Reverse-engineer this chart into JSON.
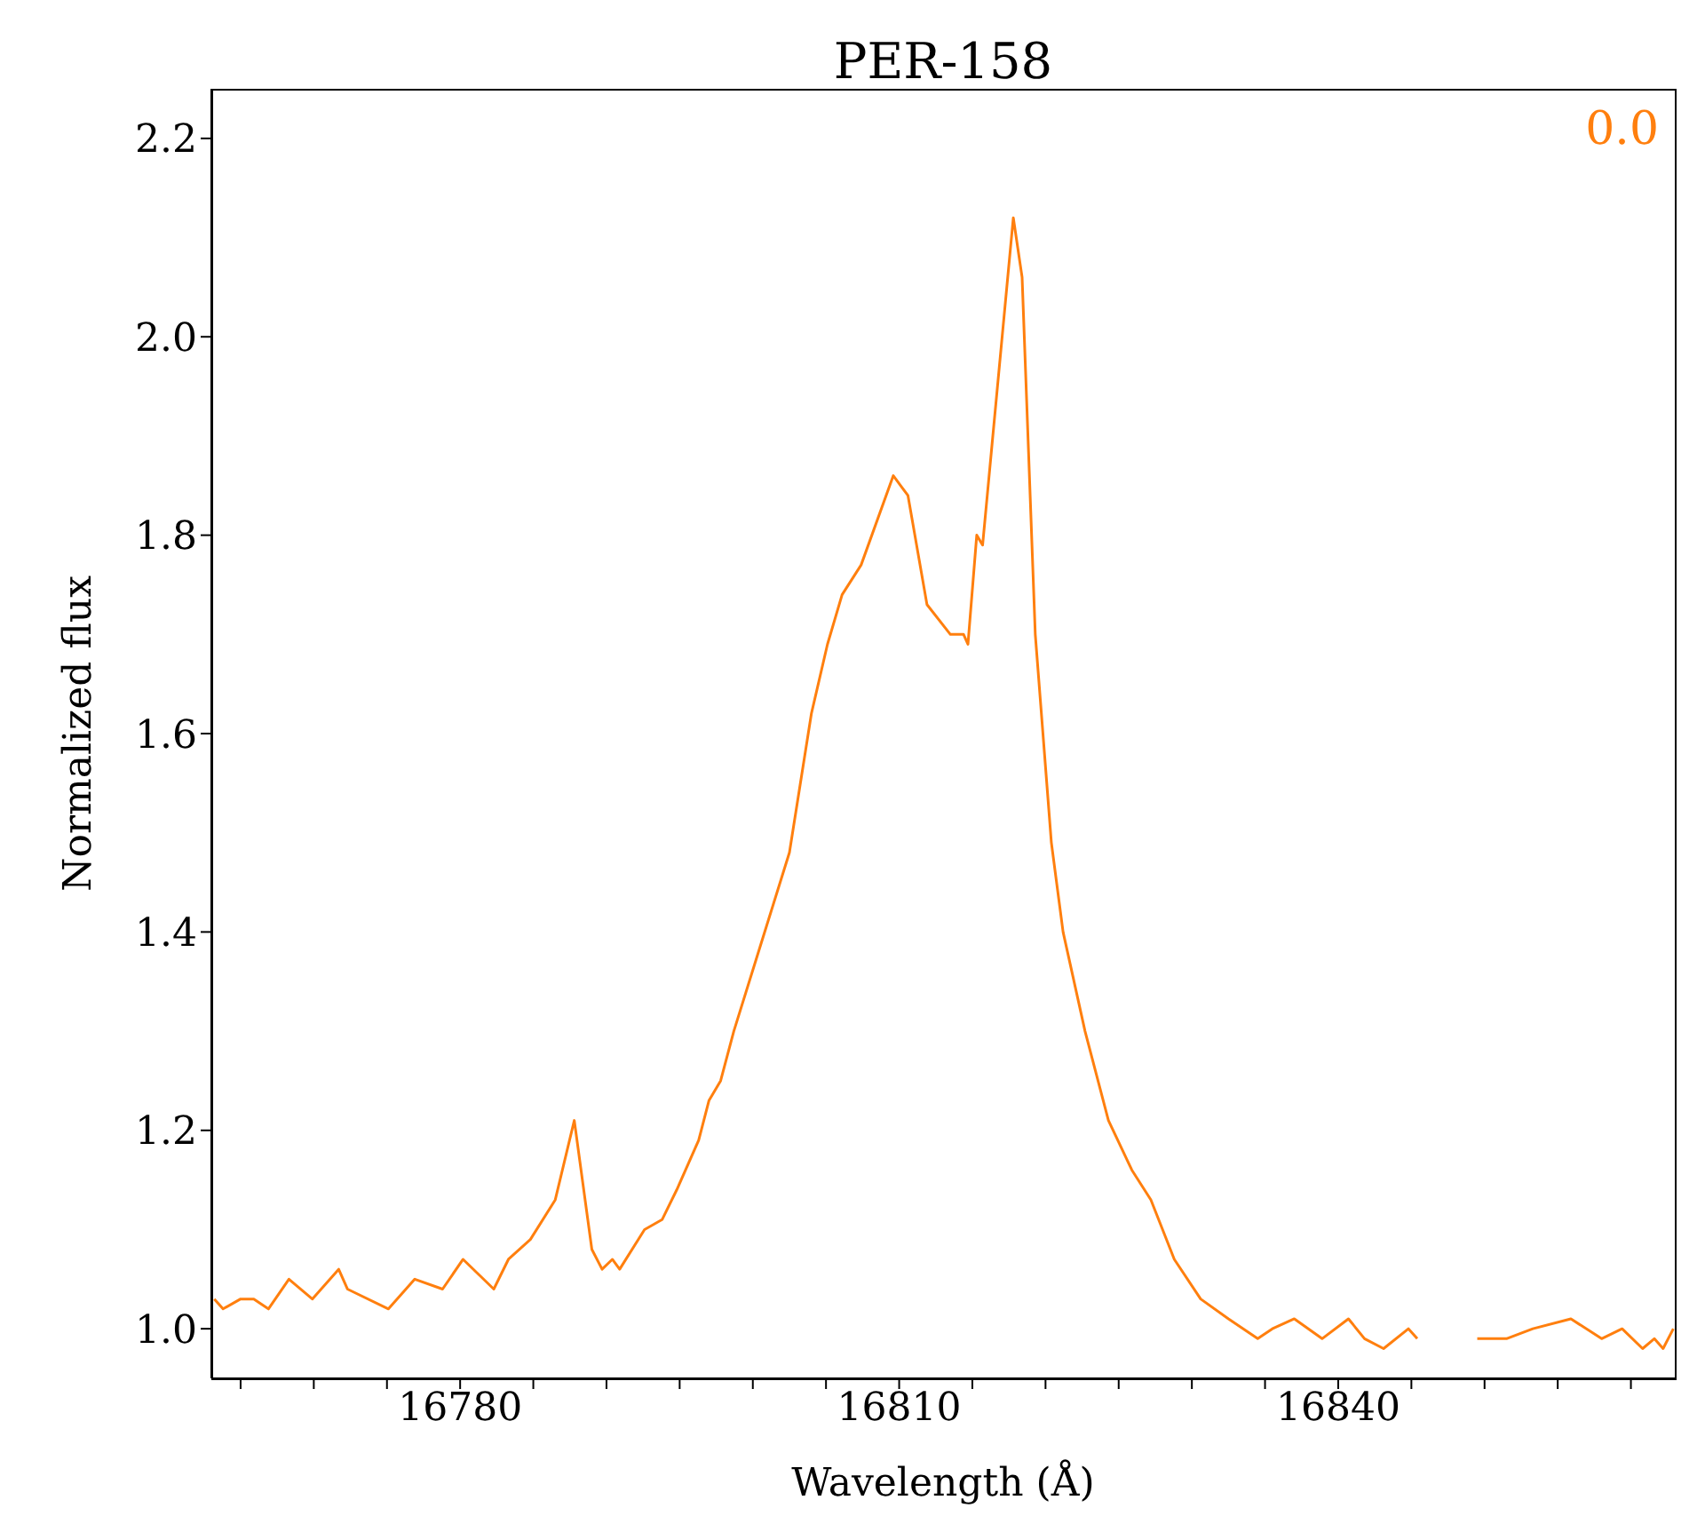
{
  "chart_data": {
    "type": "line",
    "title": "PER-158",
    "xlabel": "Wavelength (Å)",
    "ylabel": "Normalized flux",
    "annotations": [
      "0.0"
    ],
    "xlim": [
      16763,
      16863
    ],
    "ylim": [
      0.95,
      2.25
    ],
    "xticks": [
      {
        "value": 16765,
        "label": null
      },
      {
        "value": 16770,
        "label": null
      },
      {
        "value": 16775,
        "label": null
      },
      16780,
      {
        "value": 16785,
        "label": null
      },
      {
        "value": 16790,
        "label": null
      },
      {
        "value": 16795,
        "label": null
      },
      {
        "value": 16800,
        "label": null
      },
      {
        "value": 16805,
        "label": null
      },
      16810,
      {
        "value": 16815,
        "label": null
      },
      {
        "value": 16820,
        "label": null
      },
      {
        "value": 16825,
        "label": null
      },
      {
        "value": 16830,
        "label": null
      },
      {
        "value": 16835,
        "label": null
      },
      16840,
      {
        "value": 16845,
        "label": null
      },
      {
        "value": 16850,
        "label": null
      },
      {
        "value": 16855,
        "label": null
      },
      {
        "value": 16860,
        "label": null
      }
    ],
    "yticks": [
      {
        "value": 1.0,
        "label": "1.0"
      },
      1.2,
      1.4,
      1.6,
      1.8,
      {
        "value": 2.0,
        "label": "2.0"
      },
      2.2
    ],
    "grid": false,
    "legend": false,
    "marker": "none",
    "line_style": "solid",
    "x": [
      16763.2,
      16763.8,
      16765.0,
      16765.9,
      16766.9,
      16768.3,
      16769.9,
      16771.7,
      16772.3,
      16775.1,
      16776.9,
      16778.8,
      16780.2,
      16782.3,
      16783.3,
      16784.8,
      16786.5,
      16787.8,
      16789.0,
      16789.7,
      16790.4,
      16790.9,
      16792.6,
      16793.8,
      16794.8,
      16796.3,
      16797.0,
      16797.8,
      16798.7,
      16800.6,
      16802.5,
      16804.0,
      16805.1,
      16806.1,
      16807.4,
      16809.6,
      16810.6,
      16811.9,
      16813.5,
      16814.4,
      16814.7,
      16815.3,
      16815.7,
      16816.4,
      16817.8,
      16818.4,
      16819.3,
      16820.4,
      16821.2,
      16822.7,
      16824.3,
      16825.9,
      16827.2,
      16828.8,
      16830.6,
      16832.5,
      16834.5,
      16835.5,
      16837.0,
      16838.9,
      16840.7,
      16841.8,
      16843.1,
      16844.8,
      16845.4,
      16847.5,
      16849.5,
      16851.5,
      16853.3,
      16855.9,
      16858.0,
      16859.4,
      16860.8,
      16861.6,
      16862.2,
      16862.9
    ],
    "series": [
      {
        "color": "#ff7f0e",
        "values": [
          1.03,
          1.02,
          1.03,
          1.03,
          1.02,
          1.05,
          1.03,
          1.06,
          1.04,
          1.02,
          1.05,
          1.04,
          1.07,
          1.04,
          1.07,
          1.09,
          1.13,
          1.21,
          1.08,
          1.06,
          1.07,
          1.06,
          1.1,
          1.11,
          1.14,
          1.19,
          1.23,
          1.25,
          1.3,
          1.39,
          1.48,
          1.62,
          1.69,
          1.74,
          1.77,
          1.86,
          1.84,
          1.73,
          1.7,
          1.7,
          1.69,
          1.8,
          1.79,
          1.9,
          2.12,
          2.06,
          1.7,
          1.49,
          1.4,
          1.3,
          1.21,
          1.16,
          1.13,
          1.07,
          1.03,
          1.01,
          0.99,
          1.0,
          1.01,
          0.99,
          1.01,
          0.99,
          0.98,
          1.0,
          0.99,
          null,
          0.99,
          0.99,
          1.0,
          1.01,
          0.99,
          1.0,
          0.98,
          0.99,
          0.98,
          1.0
        ]
      }
    ]
  }
}
